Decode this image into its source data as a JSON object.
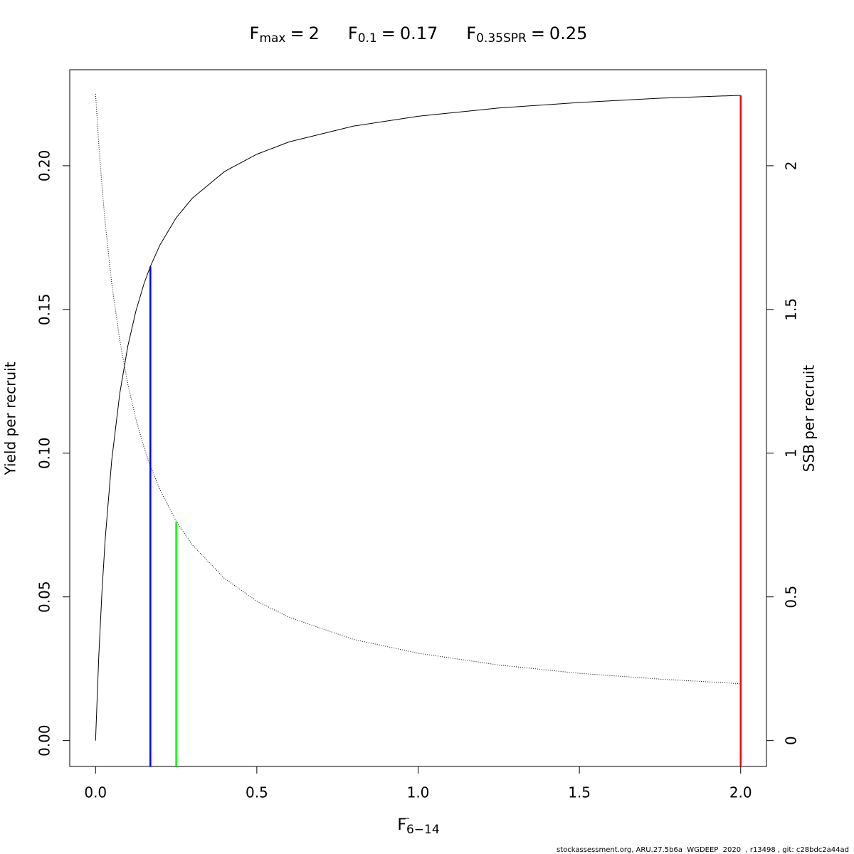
{
  "chart_data": {
    "type": "line",
    "title_items": [
      {
        "symbol": "F",
        "subscript": "max",
        "relation": "=",
        "value": 2
      },
      {
        "symbol": "F",
        "subscript": "0.1",
        "relation": "=",
        "value": 0.17
      },
      {
        "symbol": "F",
        "subscript": "0.35SPR",
        "relation": "=",
        "value": 0.25
      }
    ],
    "x_label": {
      "symbol": "F",
      "subscript": "6−14"
    },
    "y_label": "Yield per recruit",
    "y2_label": "SSB per recruit",
    "footer": "stockassessment.org, ARU.27.5b6a  WGDEEP  2020  , r13498 , git: c28bdc2a44ad",
    "x": [
      0,
      0.01,
      0.02,
      0.03,
      0.05,
      0.075,
      0.1,
      0.125,
      0.15,
      0.17,
      0.2,
      0.25,
      0.3,
      0.4,
      0.5,
      0.6,
      0.8,
      1.0,
      1.25,
      1.5,
      1.75,
      2.0
    ],
    "series": [
      {
        "name": "Yield per recruit",
        "color": "#000000",
        "style": "solid",
        "axis": "y",
        "values": [
          0,
          0.0293,
          0.052,
          0.0702,
          0.0974,
          0.1207,
          0.1372,
          0.1494,
          0.1589,
          0.165,
          0.1725,
          0.1819,
          0.1887,
          0.198,
          0.204,
          0.2083,
          0.2138,
          0.2172,
          0.2201,
          0.222,
          0.2235,
          0.2245
        ]
      },
      {
        "name": "SSB per recruit",
        "color": "#000000",
        "style": "dotted",
        "axis": "y2",
        "values": [
          2.25,
          2.076,
          1.928,
          1.8,
          1.592,
          1.393,
          1.24,
          1.119,
          1.021,
          0.955,
          0.872,
          0.763,
          0.681,
          0.564,
          0.485,
          0.429,
          0.352,
          0.304,
          0.263,
          0.234,
          0.214,
          0.198
        ]
      }
    ],
    "reference_lines": [
      {
        "x": 0.17,
        "y": 0.165,
        "color": "#0000ff"
      },
      {
        "x": 0.25,
        "y": 0.076,
        "color": "#00ff00"
      },
      {
        "x": 2,
        "y": 0.2245,
        "color": "#ff0000"
      }
    ],
    "xlim": [
      -0.08,
      2.08
    ],
    "ylim": [
      -0.009,
      0.2334
    ],
    "y2lim": [
      -0.09,
      2.334
    ],
    "xticks": [
      {
        "value": 0,
        "label": "0.0"
      },
      0.5,
      {
        "value": 1,
        "label": "1.0"
      },
      1.5,
      {
        "value": 2,
        "label": "2.0"
      }
    ],
    "yticks": [
      {
        "value": 0,
        "label": "0.00"
      },
      0.05,
      {
        "value": 0.1,
        "label": "0.10"
      },
      0.15,
      {
        "value": 0.2,
        "label": "0.20"
      }
    ],
    "y2ticks": [
      0,
      0.5,
      1,
      1.5,
      2
    ]
  }
}
